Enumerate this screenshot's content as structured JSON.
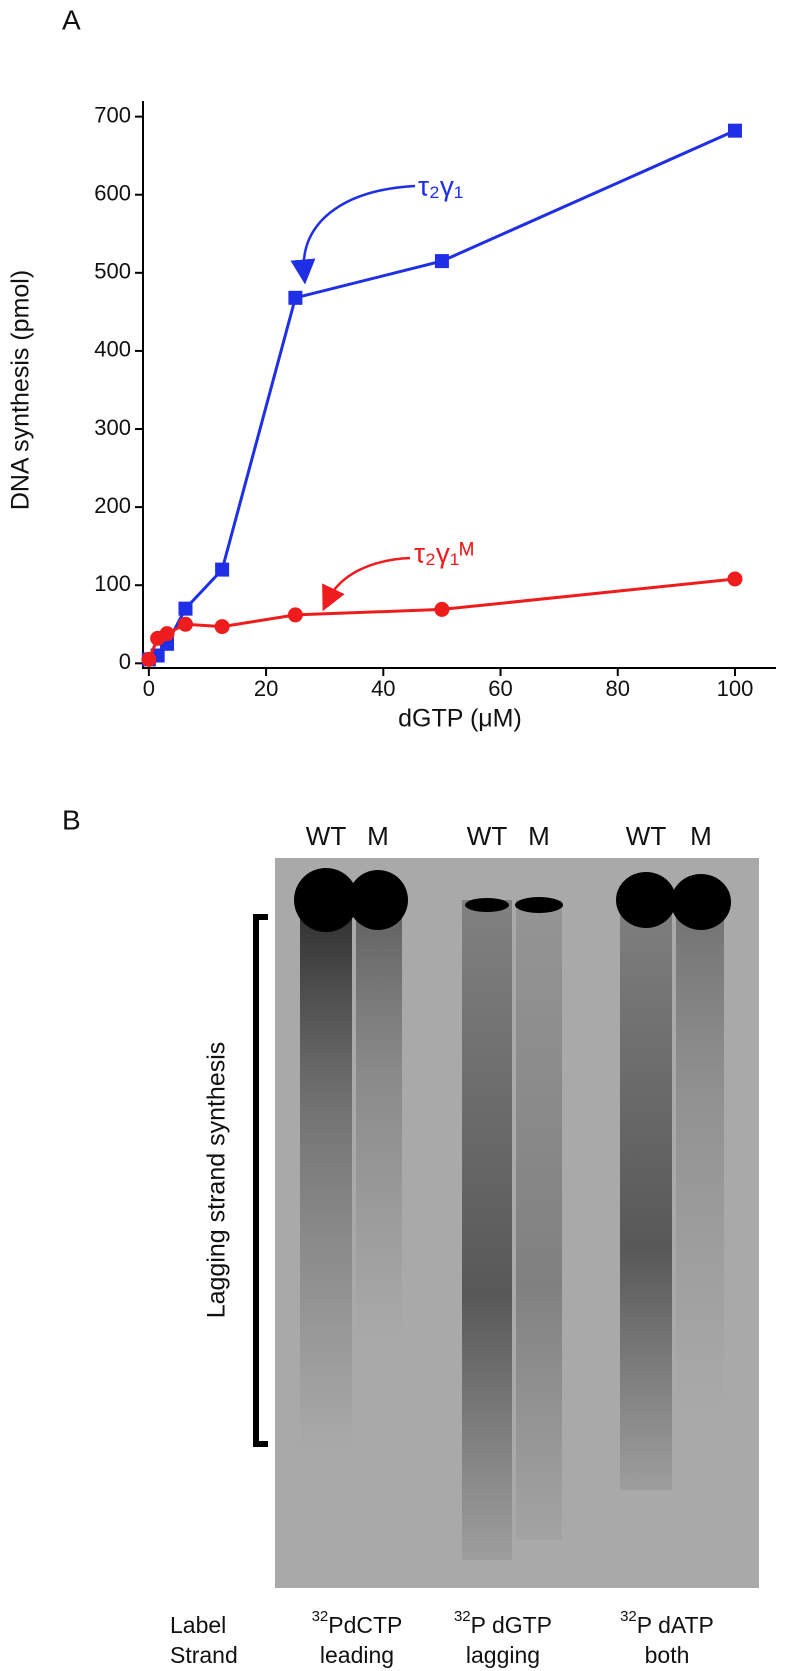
{
  "chart_data": {
    "type": "line",
    "panel_label": "A",
    "xlabel": "dGTP (μM)",
    "ylabel": "DNA synthesis (pmol)",
    "x": [
      0,
      1.5,
      3.1,
      6.25,
      12.5,
      25,
      50,
      100
    ],
    "series": [
      {
        "name": "τ₂γ₁",
        "color": "#1f2fe6",
        "marker": "square",
        "values": [
          5,
          10,
          25,
          70,
          120,
          468,
          515,
          682
        ]
      },
      {
        "name": "τ₂γ₁ᴹ",
        "color": "#ee1c1c",
        "marker": "circle",
        "values": [
          5,
          32,
          38,
          50,
          47,
          62,
          69,
          108
        ]
      }
    ],
    "xlim": [
      -1,
      107
    ],
    "xticks": [
      0,
      20,
      40,
      60,
      80,
      100
    ],
    "ylim": [
      -6,
      720
    ],
    "yticks": [
      0,
      100,
      200,
      300,
      400,
      500,
      600,
      700
    ],
    "grid": false
  },
  "gel": {
    "panel_label": "B",
    "lane_labels": [
      "WT",
      "M",
      "WT",
      "M",
      "WT",
      "M"
    ],
    "bracket_label": "Lagging strand synthesis",
    "row_labels": [
      "Label",
      "Strand"
    ],
    "conditions": [
      {
        "isotope": "32",
        "label": "PdCTP",
        "strand": "leading"
      },
      {
        "isotope": "32",
        "label": "P dGTP",
        "strand": "lagging"
      },
      {
        "isotope": "32",
        "label": "P dATP",
        "strand": "both"
      }
    ]
  }
}
